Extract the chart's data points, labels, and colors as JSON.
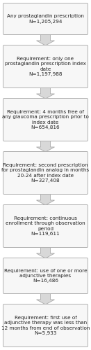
{
  "boxes": [
    {
      "text": "Any prostaglandin prescription\nN=1,205,294",
      "lines": 2
    },
    {
      "text": "Requirement: only one\nprostaglandin prescription index\ndate\nN=1,197,988",
      "lines": 4
    },
    {
      "text": "Requirement: 4 months free of\nany glaucoma prescription prior to\nindex date\nN=654,816",
      "lines": 4
    },
    {
      "text": "Requirement: second prescription\nfor prostaglandin analog in months\n20-24 after index date\nN=327,408",
      "lines": 4
    },
    {
      "text": "Requirement: continuous\nenrollment through observation\nperiod\nN=119,611",
      "lines": 4
    },
    {
      "text": "Requirement: use of one or more\nadjunctive therapies\nN=16,486",
      "lines": 3
    },
    {
      "text": "Requirement: first use of\nadjunctive therapy was less than\n12 months from end of observation\nN=5,933",
      "lines": 4
    }
  ],
  "box_facecolor": "#f7f7f7",
  "box_edgecolor": "#b0b0b0",
  "arrow_fill": "#d8d8d8",
  "arrow_edge": "#aaaaaa",
  "text_fontsize": 5.2,
  "background_color": "#ffffff",
  "text_color": "#222222"
}
